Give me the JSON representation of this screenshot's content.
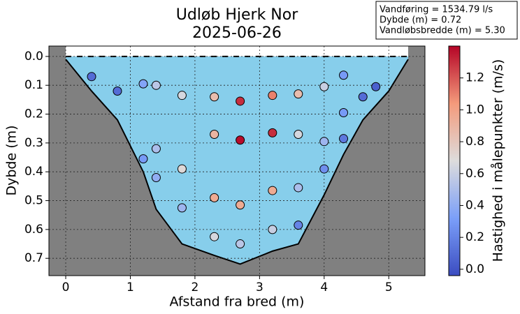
{
  "chart_data": {
    "type": "scatter",
    "title": [
      "Udløb Hjerk Nor",
      "2025-06-26"
    ],
    "info": [
      "Vandføring = 1534.79 l/s",
      "Dybde (m) = 0.72",
      "Vandløbsbredde (m) = 5.30"
    ],
    "xlabel": "Afstand fra bred (m)",
    "ylabel": "Dybde (m)",
    "colorbar_label": "Hastighed i målepunkter (m/s)",
    "xlim": [
      -0.26,
      5.56
    ],
    "xticks": [
      0,
      1,
      2,
      3,
      4,
      5
    ],
    "ylim": [
      -0.036,
      0.76
    ],
    "y_inverted": true,
    "yticks": [
      {
        "value": 0,
        "label": "0.0"
      },
      {
        "value": 0.1,
        "label": "0.1"
      },
      {
        "value": 0.2,
        "label": "0.2"
      },
      {
        "value": 0.3,
        "label": "0.3"
      },
      {
        "value": 0.4,
        "label": "0.4"
      },
      {
        "value": 0.5,
        "label": "0.5"
      },
      {
        "value": 0.6,
        "label": "0.6"
      },
      {
        "value": 0.7,
        "label": "0.7"
      }
    ],
    "clim": [
      -0.04,
      1.4
    ],
    "cticks": [
      {
        "value": 0,
        "label": "0.0"
      },
      {
        "value": 0.2,
        "label": "0.2"
      },
      {
        "value": 0.4,
        "label": "0.4"
      },
      {
        "value": 0.6,
        "label": "0.6"
      },
      {
        "value": 0.8,
        "label": "0.8"
      },
      {
        "value": 1.0,
        "label": "1.0"
      },
      {
        "value": 1.2,
        "label": "1.2"
      }
    ],
    "colormap": [
      "#3b4cc0",
      "#7b9ff9",
      "#dddcdc",
      "#f49a7b",
      "#b40426"
    ],
    "grid": true,
    "ground_color": "#808080",
    "water_color": "#87ceeb",
    "profile": {
      "x": [
        0,
        0.4,
        0.8,
        1.2,
        1.4,
        1.8,
        2.3,
        2.7,
        3.2,
        3.6,
        4.0,
        4.3,
        4.6,
        5.0,
        5.3
      ],
      "depth": [
        0.01,
        0.12,
        0.22,
        0.4,
        0.53,
        0.65,
        0.69,
        0.72,
        0.675,
        0.65,
        0.48,
        0.34,
        0.22,
        0.12,
        0.01
      ]
    },
    "points": {
      "x": [
        0.4,
        0.8,
        1.2,
        1.4,
        1.8,
        2.3,
        2.7,
        3.2,
        3.6,
        4.0,
        4.3,
        4.6,
        4.8,
        2.3,
        2.7,
        3.2,
        3.6,
        4.0,
        4.3,
        4.3,
        1.2,
        1.4,
        1.8,
        1.4,
        4.0,
        2.3,
        2.7,
        3.2,
        3.6,
        1.8,
        2.3,
        2.7,
        3.2,
        3.6
      ],
      "depth": [
        0.07,
        0.12,
        0.095,
        0.1,
        0.135,
        0.14,
        0.155,
        0.135,
        0.13,
        0.105,
        0.065,
        0.14,
        0.105,
        0.27,
        0.29,
        0.265,
        0.27,
        0.295,
        0.285,
        0.195,
        0.355,
        0.32,
        0.39,
        0.42,
        0.39,
        0.49,
        0.515,
        0.465,
        0.455,
        0.525,
        0.625,
        0.65,
        0.6,
        0.585
      ],
      "velocity": [
        0.1,
        0.1,
        0.35,
        0.55,
        0.65,
        0.85,
        1.3,
        1.1,
        0.85,
        0.6,
        0.3,
        0.1,
        0.05,
        0.9,
        1.38,
        1.3,
        0.65,
        0.45,
        0.15,
        0.3,
        0.3,
        0.5,
        0.7,
        0.4,
        0.25,
        0.95,
        0.95,
        0.95,
        0.5,
        0.45,
        0.65,
        0.55,
        0.6,
        0.2
      ]
    }
  }
}
